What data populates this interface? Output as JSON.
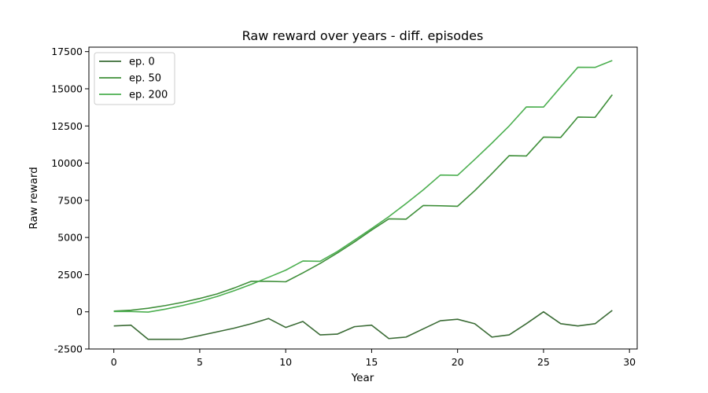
{
  "chart_data": {
    "type": "line",
    "title": "Raw reward over years - diff. episodes",
    "xlabel": "Year",
    "ylabel": "Raw reward",
    "xlim": [
      -1.45,
      30.45
    ],
    "ylim": [
      -2500,
      17800
    ],
    "xticks": [
      0,
      5,
      10,
      15,
      20,
      25,
      30
    ],
    "yticks": [
      -2500,
      0,
      2500,
      5000,
      7500,
      10000,
      12500,
      15000,
      17500
    ],
    "grid": false,
    "legend": "top-left",
    "x": [
      0,
      1,
      2,
      3,
      4,
      5,
      6,
      7,
      8,
      9,
      10,
      11,
      12,
      13,
      14,
      15,
      16,
      17,
      18,
      19,
      20,
      21,
      22,
      23,
      24,
      25,
      26,
      27,
      28,
      29
    ],
    "series": [
      {
        "name": "ep. 0",
        "color": "#3a6b35",
        "values": [
          -950,
          -900,
          -1850,
          -1850,
          -1840,
          -1600,
          -1350,
          -1100,
          -800,
          -450,
          -1050,
          -650,
          -1550,
          -1500,
          -1000,
          -900,
          -1800,
          -1700,
          -1150,
          -600,
          -500,
          -800,
          -1700,
          -1550,
          -800,
          0,
          -800,
          -950,
          -800,
          100
        ]
      },
      {
        "name": "ep. 50",
        "color": "#3f8f3a",
        "values": [
          50,
          110,
          240,
          420,
          640,
          900,
          1200,
          1600,
          2050,
          2050,
          2020,
          2620,
          3250,
          3950,
          4700,
          5500,
          6250,
          6230,
          7150,
          7130,
          7100,
          8150,
          9300,
          10500,
          10480,
          11750,
          11730,
          13100,
          13080,
          14600
        ]
      },
      {
        "name": "ep. 200",
        "color": "#4caf50",
        "values": [
          20,
          20,
          -20,
          180,
          420,
          700,
          1030,
          1420,
          1850,
          2320,
          2800,
          3420,
          3400,
          4050,
          4820,
          5600,
          6400,
          7280,
          8200,
          9200,
          9180,
          10250,
          11350,
          12500,
          13780,
          13770,
          15120,
          16450,
          16440,
          16900
        ]
      }
    ]
  }
}
